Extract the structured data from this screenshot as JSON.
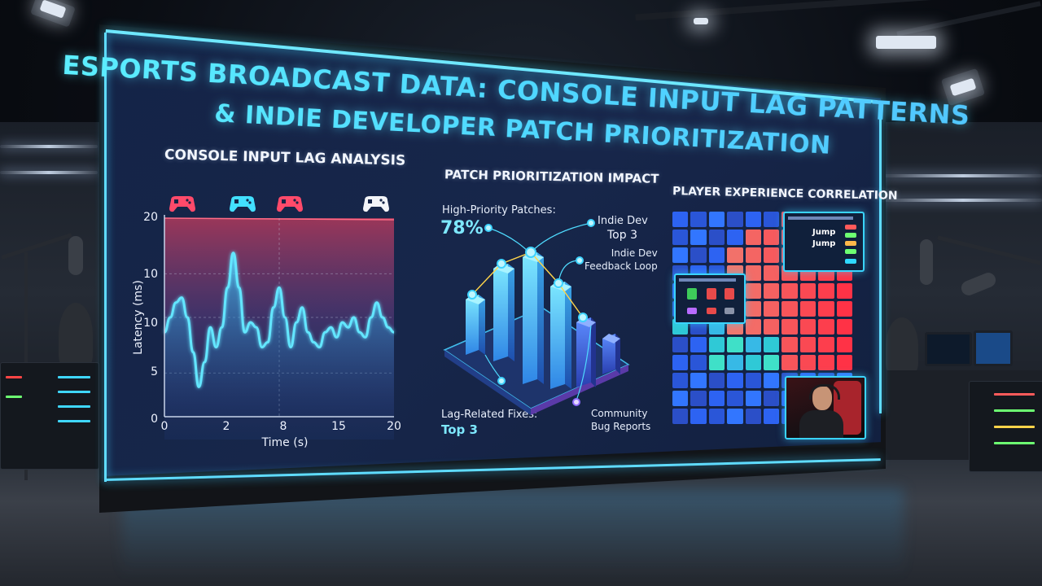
{
  "title": {
    "line1": "ESPORTS BROADCAST DATA: CONSOLE INPUT LAG PATTERNS",
    "line2": "& INDIE DEVELOPER PATCH PRIORITIZATION"
  },
  "panels": {
    "lag": {
      "title": "CONSOLE INPUT LAG ANALYSIS",
      "ylabel": "Latency (ms)",
      "xlabel": "Time (s)",
      "yticks": [
        "20",
        "10",
        "10",
        "5",
        "0"
      ],
      "xticks": [
        "0",
        "2",
        "8",
        "15",
        "20"
      ],
      "controller_colors": [
        "#ff4a6a",
        "#42e0ff",
        "#ff4a6a",
        "#f2f4f8"
      ],
      "controller_icon": "gamepad-icon"
    },
    "patch": {
      "title": "PATCH PRIORITIZATION IMPACT",
      "high_priority_label": "High-Priority Patches:",
      "high_priority_value": "78%",
      "indie_dev_label": "Indie Dev",
      "indie_dev_value": "Top 3",
      "feedback_loop_label": "Indie Dev\nFeedback Loop",
      "lag_fixes_label": "Lag-Related Fixes:",
      "lag_fixes_value": "Top 3",
      "community_label": "Community\nBug Reports"
    },
    "experience": {
      "title": "PLAYER EXPERIENCE CORRELATION",
      "overlay_word_1": "Jump",
      "overlay_word_2": "Jump"
    }
  },
  "chart_data": {
    "type": "line",
    "xlabel": "Time (s)",
    "ylabel": "Latency (ms)",
    "ylim": [
      0,
      20
    ],
    "xlim": [
      0,
      20
    ],
    "series": [
      {
        "x": [
          0,
          0.5,
          1,
          1.5,
          2,
          2.5,
          3,
          3.5,
          4,
          4.5,
          5,
          5.5,
          6,
          6.5,
          7,
          7.5,
          8,
          8.5,
          9,
          9.5,
          10,
          10.5,
          11,
          11.5,
          12,
          12.5,
          13,
          13.5,
          14,
          14.5,
          15,
          15.5,
          16,
          16.5,
          17,
          17.5,
          18,
          18.5,
          19,
          19.5,
          20
        ],
        "y": [
          8.5,
          10,
          11.5,
          12,
          10,
          6.5,
          3,
          5.5,
          9,
          7,
          9,
          13,
          16.5,
          13,
          8.5,
          9.5,
          9,
          7,
          7.5,
          11,
          13,
          10,
          7,
          9.5,
          11,
          8.5,
          7.5,
          7,
          8.5,
          9,
          8,
          9.5,
          9,
          10,
          8.5,
          8,
          10,
          11.5,
          10,
          9,
          8.5
        ]
      }
    ]
  },
  "colors": {
    "accent": "#4fdcff",
    "heat_hot": "#ff4a55",
    "heat_cool": "#2f6bff"
  }
}
